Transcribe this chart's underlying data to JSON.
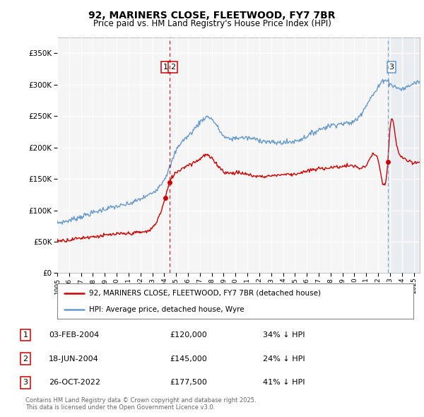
{
  "title": "92, MARINERS CLOSE, FLEETWOOD, FY7 7BR",
  "subtitle": "Price paid vs. HM Land Registry's House Price Index (HPI)",
  "hpi_color": "#6699cc",
  "price_color": "#cc0000",
  "plot_bg": "#f5f5f5",
  "fig_bg": "#ffffff",
  "ylim": [
    0,
    375000
  ],
  "yticks": [
    0,
    50000,
    100000,
    150000,
    200000,
    250000,
    300000,
    350000
  ],
  "xlim_start": 1995.0,
  "xlim_end": 2025.5,
  "sale_dates": [
    2004.087,
    2004.463,
    2022.817
  ],
  "sale_prices": [
    120000,
    145000,
    177500
  ],
  "vline2_x": 2004.463,
  "vline3_x": 2022.817,
  "footer": "Contains HM Land Registry data © Crown copyright and database right 2025.\nThis data is licensed under the Open Government Licence v3.0.",
  "legend_line1": "92, MARINERS CLOSE, FLEETWOOD, FY7 7BR (detached house)",
  "legend_line2": "HPI: Average price, detached house, Wyre",
  "table": [
    {
      "num": "1",
      "date": "03-FEB-2004",
      "price": "£120,000",
      "pct": "34% ↓ HPI"
    },
    {
      "num": "2",
      "date": "18-JUN-2004",
      "price": "£145,000",
      "pct": "24% ↓ HPI"
    },
    {
      "num": "3",
      "date": "26-OCT-2022",
      "price": "£177,500",
      "pct": "41% ↓ HPI"
    }
  ],
  "hpi_anchors_x": [
    1995,
    1996,
    1997,
    1998,
    1999,
    2000,
    2001,
    2002,
    2003,
    2004,
    2004.5,
    2005,
    2006,
    2007,
    2007.8,
    2008.5,
    2009,
    2010,
    2011,
    2012,
    2013,
    2014,
    2015,
    2016,
    2017,
    2018,
    2019,
    2020,
    2020.5,
    2021,
    2021.5,
    2022,
    2022.5,
    2023,
    2023.5,
    2024,
    2024.5,
    2025,
    2025.5
  ],
  "hpi_anchors_y": [
    80000,
    84000,
    90000,
    96000,
    102000,
    106000,
    110000,
    118000,
    128000,
    150000,
    170000,
    195000,
    218000,
    240000,
    248000,
    232000,
    218000,
    215000,
    215000,
    212000,
    208000,
    208000,
    210000,
    218000,
    228000,
    235000,
    238000,
    242000,
    252000,
    268000,
    282000,
    295000,
    308000,
    302000,
    296000,
    293000,
    297000,
    302000,
    305000
  ],
  "price_anchors_x": [
    1995,
    1996,
    1997,
    1998,
    1999,
    2000,
    2001,
    2002,
    2003,
    2004.087,
    2004.463,
    2005,
    2006,
    2007,
    2007.5,
    2008,
    2008.5,
    2009,
    2010,
    2011,
    2012,
    2013,
    2014,
    2015,
    2016,
    2017,
    2018,
    2019,
    2020,
    2021,
    2022,
    2022.817,
    2023,
    2023.5,
    2024,
    2024.5,
    2025,
    2025.5
  ],
  "price_anchors_y": [
    52000,
    53000,
    56000,
    58000,
    60000,
    62000,
    63000,
    65000,
    72000,
    120000,
    145000,
    160000,
    172000,
    182000,
    188000,
    182000,
    172000,
    162000,
    160000,
    157000,
    154000,
    155000,
    157000,
    158000,
    162000,
    166000,
    168000,
    170000,
    170000,
    172000,
    178000,
    177500,
    230000,
    210000,
    185000,
    178000,
    175000,
    178000
  ]
}
